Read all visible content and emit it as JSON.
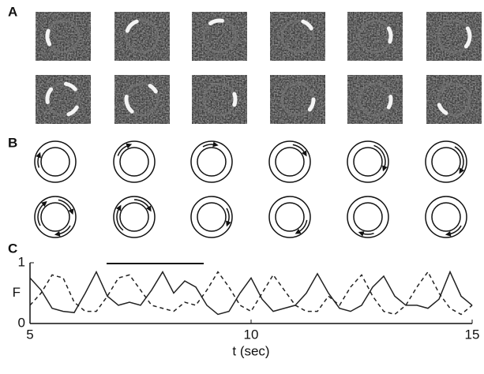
{
  "panel_labels": [
    "A",
    "B",
    "C"
  ],
  "chart_data": {
    "type": "line",
    "xlabel": "t (sec)",
    "ylabel": "F",
    "xlim": [
      5,
      15
    ],
    "ylim": [
      0,
      1
    ],
    "xticks": [
      5,
      10,
      15
    ],
    "yticks": [
      0,
      1
    ],
    "x": [
      5,
      5.25,
      5.5,
      5.75,
      6,
      6.25,
      6.5,
      6.75,
      7,
      7.25,
      7.5,
      7.75,
      8,
      8.25,
      8.5,
      8.75,
      9,
      9.25,
      9.5,
      9.75,
      10,
      10.25,
      10.5,
      10.75,
      11,
      11.25,
      11.5,
      11.75,
      12,
      12.25,
      12.5,
      12.75,
      13,
      13.25,
      13.5,
      13.75,
      14,
      14.25,
      14.5,
      14.75,
      15
    ],
    "series": [
      {
        "color": "#222222",
        "style": "solid",
        "values": [
          0.75,
          0.55,
          0.25,
          0.2,
          0.18,
          0.5,
          0.85,
          0.45,
          0.3,
          0.35,
          0.3,
          0.55,
          0.85,
          0.5,
          0.7,
          0.6,
          0.3,
          0.15,
          0.2,
          0.5,
          0.75,
          0.4,
          0.2,
          0.25,
          0.3,
          0.5,
          0.82,
          0.5,
          0.25,
          0.2,
          0.3,
          0.6,
          0.78,
          0.45,
          0.3,
          0.3,
          0.25,
          0.4,
          0.85,
          0.45,
          0.3
        ]
      },
      {
        "color": "#222222",
        "style": "dashed",
        "values": [
          0.3,
          0.5,
          0.8,
          0.75,
          0.35,
          0.2,
          0.2,
          0.45,
          0.75,
          0.8,
          0.55,
          0.3,
          0.25,
          0.2,
          0.35,
          0.3,
          0.55,
          0.85,
          0.6,
          0.3,
          0.2,
          0.5,
          0.8,
          0.55,
          0.3,
          0.2,
          0.2,
          0.45,
          0.3,
          0.6,
          0.8,
          0.45,
          0.2,
          0.15,
          0.3,
          0.6,
          0.85,
          0.5,
          0.25,
          0.15,
          0.3
        ]
      }
    ]
  }
}
